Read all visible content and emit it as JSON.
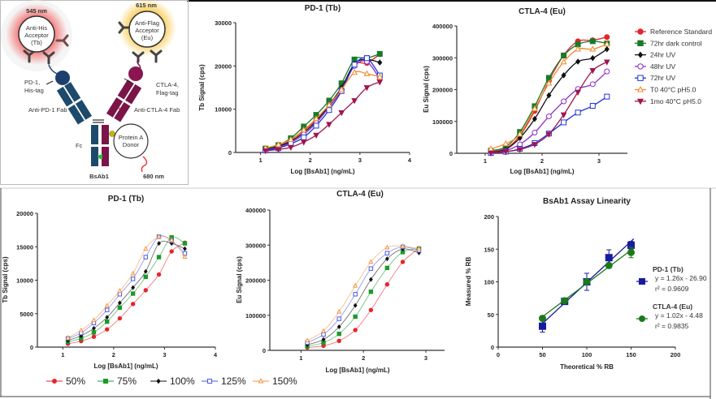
{
  "diagram": {
    "tb_wavelength": "545 nm",
    "eu_wavelength": "615 nm",
    "donor_wavelength": "680 nm",
    "tb_acceptor": [
      "Anti-His",
      "Acceptor",
      "(Tb)"
    ],
    "eu_acceptor": [
      "Anti-Flag",
      "Acceptor",
      "(Eu)"
    ],
    "pd1_tag": [
      "PD-1,",
      "His-tag"
    ],
    "ctla4_tag": [
      "CTLA-4,",
      "Flag-tag"
    ],
    "pd1_fab": "Anti-PD-1 Fab",
    "ctla4_fab": "Anti-CTLA-4 Fab",
    "fc": "Fc",
    "donor": [
      "Protein A",
      "Donor"
    ],
    "molecule": "BsAb1",
    "colors": {
      "tb_glow": "#f46a6a",
      "eu_glow": "#f7c948",
      "pd1_arm": "#1d4a6b",
      "ctla4_arm": "#7a1548"
    }
  },
  "chart_data": [
    {
      "type": "line",
      "title": "PD-1 (Tb)",
      "xlabel": "Log [BsAb1] (ng/mL)",
      "ylabel": "Tb Signal (cps)",
      "xlim": [
        0.5,
        4
      ],
      "ylim": [
        0,
        30000
      ],
      "xticks": [
        1,
        2,
        3,
        4
      ],
      "yticks": [
        0,
        10000,
        20000,
        30000
      ],
      "x": [
        1.1,
        1.36,
        1.61,
        1.87,
        2.12,
        2.38,
        2.63,
        2.89,
        3.14,
        3.4
      ],
      "series": [
        {
          "name": "Reference Standard",
          "color": "#e8232a",
          "marker": "circle",
          "filled": true,
          "values": [
            800,
            1500,
            2900,
            5000,
            7500,
            10500,
            14500,
            20300,
            20700,
            22700
          ]
        },
        {
          "name": "72hr dark control",
          "color": "#1a7a2a",
          "marker": "square",
          "filled": true,
          "values": [
            900,
            1700,
            3300,
            6000,
            8700,
            12000,
            16000,
            21500,
            21800,
            22800
          ]
        },
        {
          "name": "24hr UV",
          "color": "#111111",
          "marker": "diamond",
          "filled": true,
          "values": [
            700,
            1400,
            2600,
            4600,
            7200,
            11000,
            15000,
            20500,
            21500,
            20800
          ]
        },
        {
          "name": "48hr UV",
          "color": "#8b2fc9",
          "marker": "circle",
          "filled": false,
          "values": [
            600,
            1200,
            2300,
            4200,
            6800,
            10500,
            14500,
            20000,
            21000,
            17000
          ]
        },
        {
          "name": "72hr UV",
          "color": "#2233dd",
          "marker": "square",
          "filled": false,
          "values": [
            500,
            1000,
            2000,
            3500,
            6200,
            9800,
            14200,
            20300,
            21800,
            17800
          ]
        },
        {
          "name": "T0 40°C pH5.0",
          "color": "#f28a2a",
          "marker": "triangle",
          "filled": false,
          "values": [
            1000,
            1800,
            3000,
            5200,
            7800,
            11000,
            14500,
            18500,
            18200,
            17500
          ]
        },
        {
          "name": "1mo 40°C pH5.0",
          "color": "#a0154f",
          "marker": "triangle-down",
          "filled": true,
          "values": [
            400,
            700,
            1200,
            2400,
            4000,
            6500,
            9200,
            12000,
            15000,
            16300
          ]
        }
      ]
    },
    {
      "type": "line",
      "title": "CTLA-4 (Eu)",
      "xlabel": "Log [BsAb1] (ng/mL)",
      "ylabel": "Eu Signal (cps)",
      "xlim": [
        0.5,
        3.5
      ],
      "ylim": [
        0,
        400000
      ],
      "xticks": [
        1,
        2,
        3
      ],
      "yticks": [
        0,
        100000,
        200000,
        300000,
        400000
      ],
      "legend": "right",
      "x": [
        1.1,
        1.36,
        1.61,
        1.87,
        2.12,
        2.38,
        2.63,
        2.89,
        3.14
      ],
      "series": [
        {
          "name": "Reference Standard",
          "color": "#e8232a",
          "marker": "circle",
          "filled": true,
          "values": [
            5000,
            15000,
            55000,
            133000,
            228000,
            308000,
            352000,
            355000,
            365000
          ]
        },
        {
          "name": "72hr dark control",
          "color": "#1a7a2a",
          "marker": "square",
          "filled": true,
          "values": [
            8000,
            20000,
            67000,
            148000,
            237000,
            307000,
            342000,
            352000,
            345000
          ]
        },
        {
          "name": "24hr UV",
          "color": "#111111",
          "marker": "diamond",
          "filled": true,
          "values": [
            3000,
            12000,
            48000,
            108000,
            182000,
            245000,
            288000,
            299000,
            327000
          ]
        },
        {
          "name": "48hr UV",
          "color": "#8b2fc9",
          "marker": "circle",
          "filled": false,
          "values": [
            2000,
            8000,
            28000,
            65000,
            116000,
            163000,
            202000,
            217000,
            257000
          ]
        },
        {
          "name": "72hr UV",
          "color": "#2233dd",
          "marker": "square",
          "filled": false,
          "values": [
            1000,
            5000,
            14000,
            32000,
            62000,
            97000,
            128000,
            149000,
            178000
          ]
        },
        {
          "name": "T0 40°C pH5.0",
          "color": "#f28a2a",
          "marker": "triangle",
          "filled": false,
          "values": [
            14000,
            30000,
            60000,
            140000,
            220000,
            287000,
            327000,
            327000,
            343000
          ]
        },
        {
          "name": "1mo 40°C pH5.0",
          "color": "#a0154f",
          "marker": "triangle-down",
          "filled": true,
          "values": [
            1000,
            5000,
            12000,
            28000,
            60000,
            121000,
            192000,
            260000,
            287000
          ]
        }
      ]
    },
    {
      "type": "line",
      "title": "PD-1 (Tb)",
      "xlabel": "Log [BsAb1] (ng/mL)",
      "ylabel": "Tb Signal (cps)",
      "xlim": [
        0.5,
        4
      ],
      "ylim": [
        0,
        20000
      ],
      "xticks": [
        1,
        2,
        3,
        4
      ],
      "yticks": [
        0,
        5000,
        10000,
        15000,
        20000
      ],
      "legend": "bottom",
      "x": [
        1.1,
        1.36,
        1.61,
        1.87,
        2.12,
        2.38,
        2.63,
        2.89,
        3.14,
        3.4
      ],
      "series": [
        {
          "name": "50%",
          "color": "#e8232a",
          "marker": "circle",
          "filled": true,
          "values": [
            500,
            900,
            1550,
            2650,
            4300,
            6450,
            8500,
            10850,
            14300,
            15600
          ]
        },
        {
          "name": "75%",
          "color": "#1a9a2a",
          "marker": "square",
          "filled": true,
          "values": [
            800,
            1300,
            2200,
            3800,
            5900,
            8000,
            10500,
            13450,
            16400,
            15500
          ]
        },
        {
          "name": "100%",
          "color": "#111111",
          "marker": "diamond",
          "filled": true,
          "values": [
            1000,
            1700,
            2800,
            4450,
            6600,
            8900,
            11300,
            15500,
            15500,
            14700
          ]
        },
        {
          "name": "125%",
          "color": "#4a5ae8",
          "marker": "square",
          "filled": false,
          "values": [
            1300,
            2100,
            3600,
            5550,
            7900,
            10200,
            13450,
            16500,
            15900,
            14000
          ]
        },
        {
          "name": "150%",
          "color": "#f5923e",
          "marker": "triangle",
          "filled": false,
          "values": [
            1400,
            2500,
            4000,
            6200,
            8400,
            11000,
            14700,
            16500,
            16000,
            13500
          ]
        }
      ]
    },
    {
      "type": "line",
      "title": "CTLA-4 (Eu)",
      "xlabel": "Log [BsAb1] (ng/mL)",
      "ylabel": "Eu Signal (cps)",
      "xlim": [
        0.5,
        3.3
      ],
      "ylim": [
        0,
        400000
      ],
      "xticks": [
        1,
        2,
        3
      ],
      "yticks": [
        0,
        100000,
        200000,
        300000,
        400000
      ],
      "x": [
        1.1,
        1.36,
        1.61,
        1.87,
        2.12,
        2.38,
        2.63,
        2.89
      ],
      "series": [
        {
          "name": "50%",
          "color": "#e8232a",
          "marker": "circle",
          "filled": true,
          "values": [
            8000,
            13000,
            27000,
            58000,
            115000,
            188000,
            252000,
            291000
          ]
        },
        {
          "name": "75%",
          "color": "#1a9a2a",
          "marker": "square",
          "filled": true,
          "values": [
            12000,
            22000,
            47000,
            96000,
            167000,
            235000,
            280000,
            290000
          ]
        },
        {
          "name": "100%",
          "color": "#111111",
          "marker": "diamond",
          "filled": true,
          "values": [
            16000,
            31000,
            67000,
            128000,
            202000,
            261000,
            289000,
            278000
          ]
        },
        {
          "name": "125%",
          "color": "#4a5ae8",
          "marker": "square",
          "filled": false,
          "values": [
            22000,
            45000,
            90000,
            160000,
            233000,
            277000,
            295000,
            285000
          ]
        },
        {
          "name": "150%",
          "color": "#f5923e",
          "marker": "triangle",
          "filled": false,
          "values": [
            28000,
            55000,
            110000,
            184000,
            252000,
            293000,
            297000,
            290000
          ]
        }
      ]
    },
    {
      "type": "scatter",
      "title": "BsAb1 Assay Linearity",
      "xlabel": "Theoretical % RB",
      "ylabel": "Measured % RB",
      "xlim": [
        0,
        200
      ],
      "ylim": [
        0,
        200
      ],
      "xticks": [
        0,
        50,
        100,
        150,
        200
      ],
      "yticks": [
        0,
        50,
        100,
        150,
        200
      ],
      "legend": "right",
      "x": [
        50,
        75,
        100,
        125,
        150
      ],
      "series": [
        {
          "name": "PD-1 (Tb)",
          "color": "#1a1aa0",
          "marker": "square",
          "filled": true,
          "values": [
            32,
            70,
            100,
            137,
            156
          ],
          "errors": [
            9,
            3,
            13,
            12,
            6
          ],
          "fit": {
            "slope": 1.26,
            "intercept": -26.9
          },
          "equation": "y = 1.26x - 26.90",
          "r2": "r² = 0.9609"
        },
        {
          "name": "CTLA-4 (Eu)",
          "color": "#1a7a1a",
          "marker": "circle",
          "filled": true,
          "values": [
            44,
            71,
            100,
            125,
            145
          ],
          "errors": [
            2,
            2,
            2,
            4,
            8
          ],
          "fit": {
            "slope": 1.02,
            "intercept": -4.48
          },
          "equation": "y = 1.02x - 4.48",
          "r2": "r² = 0.9835"
        }
      ]
    }
  ]
}
